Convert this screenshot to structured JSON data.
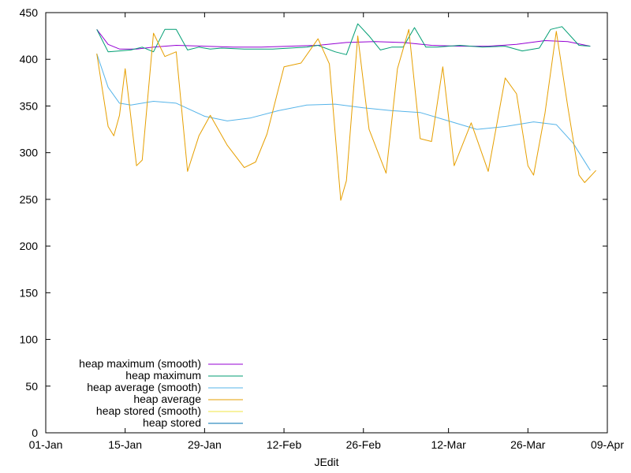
{
  "chart_data": {
    "type": "line",
    "title": "",
    "xlabel": "JEdit",
    "ylabel": "",
    "xlim": [
      "2024-01-01",
      "2024-04-09"
    ],
    "ylim": [
      0,
      450
    ],
    "x_ticks": [
      {
        "date": "2024-01-01",
        "label": "01-Jan"
      },
      {
        "date": "2024-01-15",
        "label": "15-Jan"
      },
      {
        "date": "2024-01-29",
        "label": "29-Jan"
      },
      {
        "date": "2024-02-12",
        "label": "12-Feb"
      },
      {
        "date": "2024-02-26",
        "label": "26-Feb"
      },
      {
        "date": "2024-03-12",
        "label": "12-Mar"
      },
      {
        "date": "2024-03-26",
        "label": "26-Mar"
      },
      {
        "date": "2024-04-09",
        "label": "09-Apr"
      }
    ],
    "y_ticks": [
      0,
      50,
      100,
      150,
      200,
      250,
      300,
      350,
      400,
      450
    ],
    "grid": false,
    "legend_position": "bottom-left",
    "series": [
      {
        "name": "heap maximum (smooth)",
        "color": "#9400d3",
        "points": [
          [
            "2024-01-10",
            432
          ],
          [
            "2024-01-12",
            416
          ],
          [
            "2024-01-14",
            411
          ],
          [
            "2024-01-17",
            411
          ],
          [
            "2024-01-20",
            413
          ],
          [
            "2024-01-24",
            415
          ],
          [
            "2024-01-29",
            414
          ],
          [
            "2024-02-03",
            413
          ],
          [
            "2024-02-08",
            413
          ],
          [
            "2024-02-13",
            414
          ],
          [
            "2024-02-18",
            415
          ],
          [
            "2024-02-23",
            418
          ],
          [
            "2024-02-28",
            419
          ],
          [
            "2024-03-04",
            418
          ],
          [
            "2024-03-09",
            415
          ],
          [
            "2024-03-14",
            414
          ],
          [
            "2024-03-19",
            414
          ],
          [
            "2024-03-24",
            416
          ],
          [
            "2024-03-29",
            420
          ],
          [
            "2024-04-02",
            419
          ],
          [
            "2024-04-06",
            414
          ]
        ]
      },
      {
        "name": "heap maximum",
        "color": "#009e73",
        "points": [
          [
            "2024-01-10",
            432
          ],
          [
            "2024-01-12",
            408
          ],
          [
            "2024-01-14",
            409
          ],
          [
            "2024-01-16",
            410
          ],
          [
            "2024-01-18",
            413
          ],
          [
            "2024-01-20",
            408
          ],
          [
            "2024-01-22",
            432
          ],
          [
            "2024-01-24",
            432
          ],
          [
            "2024-01-26",
            410
          ],
          [
            "2024-01-28",
            413
          ],
          [
            "2024-01-30",
            411
          ],
          [
            "2024-02-01",
            412
          ],
          [
            "2024-02-05",
            411
          ],
          [
            "2024-02-10",
            411
          ],
          [
            "2024-02-13",
            412
          ],
          [
            "2024-02-16",
            413
          ],
          [
            "2024-02-18",
            415
          ],
          [
            "2024-02-21",
            408
          ],
          [
            "2024-02-23",
            405
          ],
          [
            "2024-02-25",
            438
          ],
          [
            "2024-02-27",
            425
          ],
          [
            "2024-02-29",
            410
          ],
          [
            "2024-03-02",
            413
          ],
          [
            "2024-03-04",
            413
          ],
          [
            "2024-03-06",
            434
          ],
          [
            "2024-03-08",
            413
          ],
          [
            "2024-03-10",
            413
          ],
          [
            "2024-03-14",
            415
          ],
          [
            "2024-03-18",
            413
          ],
          [
            "2024-03-22",
            414
          ],
          [
            "2024-03-25",
            409
          ],
          [
            "2024-03-28",
            412
          ],
          [
            "2024-03-30",
            432
          ],
          [
            "2024-04-01",
            435
          ],
          [
            "2024-04-04",
            415
          ],
          [
            "2024-04-06",
            414
          ]
        ]
      },
      {
        "name": "heap average (smooth)",
        "color": "#56b4e9",
        "points": [
          [
            "2024-01-10",
            406
          ],
          [
            "2024-01-12",
            370
          ],
          [
            "2024-01-14",
            353
          ],
          [
            "2024-01-16",
            351
          ],
          [
            "2024-01-20",
            355
          ],
          [
            "2024-01-24",
            353
          ],
          [
            "2024-01-29",
            339
          ],
          [
            "2024-02-02",
            334
          ],
          [
            "2024-02-06",
            337
          ],
          [
            "2024-02-11",
            345
          ],
          [
            "2024-02-16",
            351
          ],
          [
            "2024-02-21",
            352
          ],
          [
            "2024-02-26",
            348
          ],
          [
            "2024-03-02",
            345
          ],
          [
            "2024-03-07",
            343
          ],
          [
            "2024-03-12",
            334
          ],
          [
            "2024-03-17",
            325
          ],
          [
            "2024-03-22",
            328
          ],
          [
            "2024-03-27",
            333
          ],
          [
            "2024-03-31",
            330
          ],
          [
            "2024-04-03",
            310
          ],
          [
            "2024-04-06",
            281
          ]
        ]
      },
      {
        "name": "heap average",
        "color": "#e69f00",
        "points": [
          [
            "2024-01-10",
            406
          ],
          [
            "2024-01-12",
            328
          ],
          [
            "2024-01-13",
            318
          ],
          [
            "2024-01-14",
            340
          ],
          [
            "2024-01-15",
            390
          ],
          [
            "2024-01-17",
            286
          ],
          [
            "2024-01-18",
            292
          ],
          [
            "2024-01-20",
            428
          ],
          [
            "2024-01-22",
            403
          ],
          [
            "2024-01-24",
            408
          ],
          [
            "2024-01-26",
            280
          ],
          [
            "2024-01-28",
            318
          ],
          [
            "2024-01-30",
            340
          ],
          [
            "2024-02-02",
            308
          ],
          [
            "2024-02-05",
            284
          ],
          [
            "2024-02-07",
            290
          ],
          [
            "2024-02-09",
            320
          ],
          [
            "2024-02-12",
            392
          ],
          [
            "2024-02-15",
            396
          ],
          [
            "2024-02-18",
            422
          ],
          [
            "2024-02-20",
            395
          ],
          [
            "2024-02-22",
            249
          ],
          [
            "2024-02-23",
            270
          ],
          [
            "2024-02-25",
            425
          ],
          [
            "2024-02-27",
            325
          ],
          [
            "2024-03-01",
            278
          ],
          [
            "2024-03-03",
            390
          ],
          [
            "2024-03-05",
            432
          ],
          [
            "2024-03-07",
            315
          ],
          [
            "2024-03-09",
            312
          ],
          [
            "2024-03-11",
            392
          ],
          [
            "2024-03-13",
            286
          ],
          [
            "2024-03-16",
            332
          ],
          [
            "2024-03-19",
            280
          ],
          [
            "2024-03-22",
            380
          ],
          [
            "2024-03-24",
            363
          ],
          [
            "2024-03-26",
            286
          ],
          [
            "2024-03-27",
            276
          ],
          [
            "2024-03-29",
            342
          ],
          [
            "2024-03-31",
            430
          ],
          [
            "2024-04-02",
            350
          ],
          [
            "2024-04-04",
            276
          ],
          [
            "2024-04-05",
            268
          ],
          [
            "2024-04-07",
            281
          ]
        ]
      },
      {
        "name": "heap stored (smooth)",
        "color": "#f0e442",
        "points": []
      },
      {
        "name": "heap stored",
        "color": "#0072b2",
        "points": []
      }
    ]
  }
}
